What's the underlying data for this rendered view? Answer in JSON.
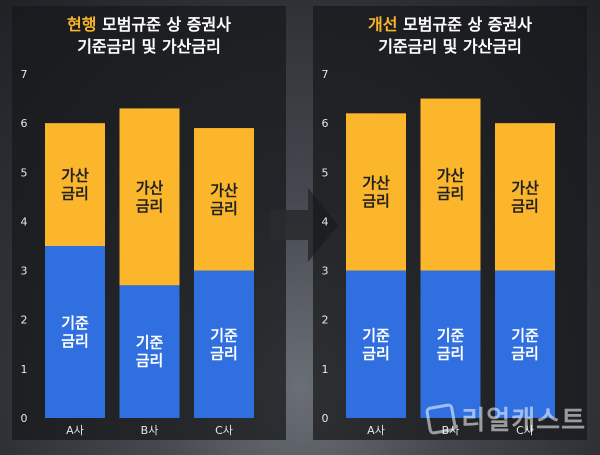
{
  "watermark": "리얼캐스트",
  "colors": {
    "base": "#2f6fe0",
    "spread": "#fbb62b",
    "highlight": "#f8b52a"
  },
  "chart_data": [
    {
      "type": "bar",
      "stacked": true,
      "title_highlight": "현행",
      "title_rest": " 모범규준 상 증권사",
      "title_line2": "기준금리 및 가산금리",
      "categories": [
        "A사",
        "B사",
        "C사"
      ],
      "ylim": [
        0,
        7
      ],
      "yticks": [
        "0",
        "1",
        "2",
        "3",
        "4",
        "5",
        "6",
        "7"
      ],
      "series": [
        {
          "name": "기준금리",
          "values": [
            3.5,
            2.7,
            3.0
          ]
        },
        {
          "name": "가산금리",
          "values": [
            2.5,
            3.6,
            2.9
          ]
        }
      ]
    },
    {
      "type": "bar",
      "stacked": true,
      "title_highlight": "개선",
      "title_rest": " 모범규준 상 증권사",
      "title_line2": "기준금리 및 가산금리",
      "categories": [
        "A사",
        "B사",
        "C사"
      ],
      "ylim": [
        0,
        7
      ],
      "yticks": [
        "0",
        "1",
        "2",
        "3",
        "4",
        "5",
        "6",
        "7"
      ],
      "series": [
        {
          "name": "기준금리",
          "values": [
            3.0,
            3.0,
            3.0
          ]
        },
        {
          "name": "가산금리",
          "values": [
            3.2,
            3.5,
            3.0
          ]
        }
      ]
    }
  ]
}
